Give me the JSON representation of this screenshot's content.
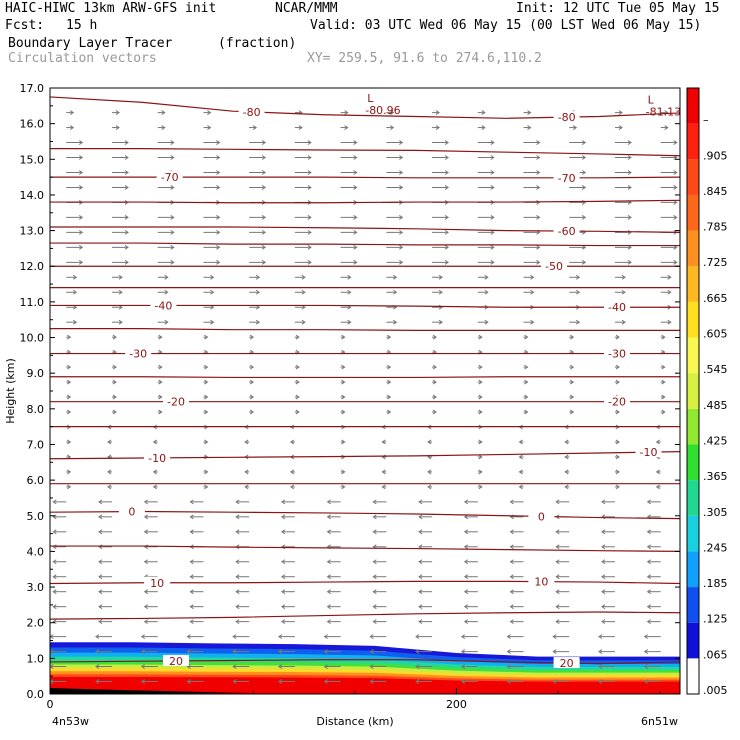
{
  "header": {
    "model": "HAIC-HIWC 13km ARW-GFS init",
    "org": "NCAR/MMM",
    "init": "Init: 12 UTC Tue 05 May 15",
    "fcst_label": "Fcst:",
    "fcst_value": "15 h",
    "valid": "Valid: 03 UTC Wed 06 May 15 (00 LST Wed 06 May 15)",
    "field": "Boundary Layer Tracer",
    "field_units": "(fraction)",
    "vectors": "Circulation vectors",
    "xy": "XY= 259.5, 91.6 to 274.6,110.2"
  },
  "chart_data": {
    "type": "cross-section",
    "xlabel": "Distance (km)",
    "ylabel": "Height (km)",
    "x_ticks": [
      "0",
      "200"
    ],
    "x_range": [
      0,
      310
    ],
    "x_left_label": "4n53w",
    "x_right_label": "6n51w",
    "ylim": [
      0,
      17
    ],
    "y_ticks": [
      "0.0",
      "1.0",
      "2.0",
      "3.0",
      "4.0",
      "5.0",
      "6.0",
      "7.0",
      "8.0",
      "9.0",
      "10.0",
      "11.0",
      "12.0",
      "13.0",
      "14.0",
      "15.0",
      "16.0",
      "17.0"
    ],
    "colorbar": {
      "labels": [
        ".005",
        ".065",
        ".125",
        ".185",
        ".245",
        ".305",
        ".365",
        ".425",
        ".485",
        ".545",
        ".605",
        ".665",
        ".725",
        ".785",
        ".845",
        ".905",
        "–"
      ],
      "colors": [
        "#ffffff",
        "#1010d8",
        "#1050f0",
        "#10a0ff",
        "#18d0e0",
        "#20d890",
        "#30e030",
        "#90e830",
        "#d8f040",
        "#f8f850",
        "#ffe020",
        "#ffb820",
        "#ff9020",
        "#ff6818",
        "#ff4818",
        "#ff2010",
        "#f00000"
      ]
    },
    "tracer_layer": {
      "top_km": [
        1.45,
        1.45,
        1.42,
        1.4,
        1.35,
        1.15,
        1.05,
        1.05,
        1.05
      ],
      "x_km": [
        0,
        40,
        80,
        120,
        160,
        200,
        240,
        280,
        310
      ]
    },
    "isotherms": [
      {
        "label": "-80",
        "y_km": [
          16.75,
          16.6,
          16.35,
          16.25,
          16.2,
          16.15,
          16.2,
          16.3
        ]
      },
      {
        "label": "",
        "y_km": [
          15.3,
          15.3,
          15.28,
          15.26,
          15.25,
          15.2,
          15.15,
          15.1
        ]
      },
      {
        "label": "-70",
        "y_km": [
          14.5,
          14.5,
          14.5,
          14.5,
          14.48,
          14.48,
          14.48,
          14.5
        ]
      },
      {
        "label": "",
        "y_km": [
          13.8,
          13.8,
          13.78,
          13.78,
          13.8,
          13.8,
          13.82,
          13.85
        ]
      },
      {
        "label": "-60",
        "y_km": [
          13.1,
          13.1,
          13.1,
          13.08,
          13.05,
          13.0,
          12.98,
          12.95
        ]
      },
      {
        "label": "",
        "y_km": [
          12.65,
          12.65,
          12.62,
          12.62,
          12.6,
          12.6,
          12.58,
          12.58
        ]
      },
      {
        "label": "-50",
        "y_km": [
          12.0,
          12.0,
          12.0,
          12.0,
          12.0,
          12.0,
          12.0,
          12.0
        ]
      },
      {
        "label": "",
        "y_km": [
          11.4,
          11.4,
          11.4,
          11.4,
          11.4,
          11.4,
          11.4,
          11.4
        ]
      },
      {
        "label": "-40",
        "y_km": [
          10.9,
          10.9,
          10.9,
          10.9,
          10.88,
          10.85,
          10.85,
          10.85
        ]
      },
      {
        "label": "",
        "y_km": [
          10.25,
          10.25,
          10.22,
          10.22,
          10.2,
          10.2,
          10.2,
          10.2
        ]
      },
      {
        "label": "-30",
        "y_km": [
          9.55,
          9.55,
          9.55,
          9.55,
          9.55,
          9.55,
          9.55,
          9.55
        ]
      },
      {
        "label": "",
        "y_km": [
          8.9,
          8.9,
          8.88,
          8.88,
          8.88,
          8.9,
          8.9,
          8.9
        ]
      },
      {
        "label": "-20",
        "y_km": [
          8.2,
          8.2,
          8.2,
          8.2,
          8.2,
          8.2,
          8.2,
          8.2
        ]
      },
      {
        "label": "",
        "y_km": [
          7.5,
          7.5,
          7.5,
          7.5,
          7.5,
          7.5,
          7.5,
          7.5
        ]
      },
      {
        "label": "-10",
        "y_km": [
          6.6,
          6.62,
          6.64,
          6.66,
          6.68,
          6.72,
          6.76,
          6.8
        ]
      },
      {
        "label": "",
        "y_km": [
          5.9,
          5.9,
          5.9,
          5.9,
          5.9,
          5.9,
          5.9,
          5.9
        ]
      },
      {
        "label": "0",
        "y_km": [
          5.1,
          5.12,
          5.1,
          5.08,
          5.05,
          5.0,
          4.95,
          4.92
        ]
      },
      {
        "label": "",
        "y_km": [
          4.15,
          4.15,
          4.12,
          4.1,
          4.08,
          4.05,
          4.02,
          4.0
        ]
      },
      {
        "label": "10",
        "y_km": [
          3.1,
          3.12,
          3.12,
          3.14,
          3.16,
          3.16,
          3.14,
          3.1
        ]
      },
      {
        "label": "",
        "y_km": [
          2.1,
          2.12,
          2.15,
          2.2,
          2.25,
          2.28,
          2.3,
          2.28
        ]
      },
      {
        "label": "20",
        "y_km": [
          0.9,
          0.92,
          0.94,
          0.96,
          0.96,
          0.9,
          0.85,
          0.9
        ]
      }
    ],
    "isotherm_x_km": [
      0,
      45,
      90,
      135,
      180,
      225,
      270,
      310
    ],
    "lows": [
      {
        "mark": "L",
        "value": "-80.96",
        "x_km": 162,
        "y_km": 16.5
      },
      {
        "mark": "L",
        "value": "-81.13",
        "x_km": 300,
        "y_km": 16.45
      }
    ],
    "grid": false
  }
}
